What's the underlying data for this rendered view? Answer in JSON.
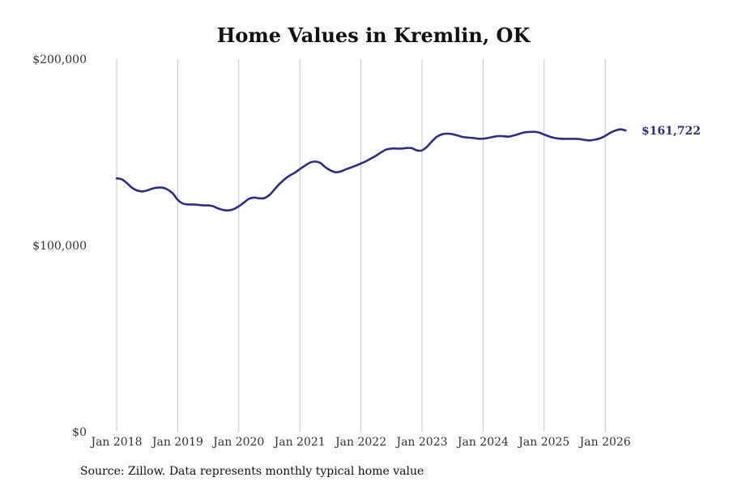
{
  "chart_data": {
    "type": "line",
    "title": "Home Values in Kremlin, OK",
    "source": "Source: Zillow. Data represents monthly typical home value",
    "ylim": [
      0,
      200000
    ],
    "y_ticks": [
      {
        "value": 0,
        "label": "$0"
      },
      {
        "value": 100000,
        "label": "$100,000"
      },
      {
        "value": 200000,
        "label": "$200,000"
      }
    ],
    "x_ticks": [
      {
        "value": "2018-01",
        "label": "Jan 2018"
      },
      {
        "value": "2019-01",
        "label": "Jan 2019"
      },
      {
        "value": "2020-01",
        "label": "Jan 2020"
      },
      {
        "value": "2021-01",
        "label": "Jan 2021"
      },
      {
        "value": "2022-01",
        "label": "Jan 2022"
      },
      {
        "value": "2023-01",
        "label": "Jan 2023"
      },
      {
        "value": "2024-01",
        "label": "Jan 2024"
      },
      {
        "value": "2025-01",
        "label": "Jan 2025"
      },
      {
        "value": "2026-01",
        "label": "Jan 2026"
      }
    ],
    "grid": "vertical",
    "line_color": "#2e2e82",
    "end_label": "$161,722",
    "series": [
      {
        "x": [
          "2018-01",
          "2018-02",
          "2018-03",
          "2018-04",
          "2018-05",
          "2018-06",
          "2018-07",
          "2018-08",
          "2018-09",
          "2018-10",
          "2018-11",
          "2018-12",
          "2019-01",
          "2019-02",
          "2019-03",
          "2019-04",
          "2019-05",
          "2019-06",
          "2019-07",
          "2019-08",
          "2019-09",
          "2019-10",
          "2019-11",
          "2019-12",
          "2020-01",
          "2020-02",
          "2020-03",
          "2020-04",
          "2020-05",
          "2020-06",
          "2020-07",
          "2020-08",
          "2020-09",
          "2020-10",
          "2020-11",
          "2020-12",
          "2021-01",
          "2021-02",
          "2021-03",
          "2021-04",
          "2021-05",
          "2021-06",
          "2021-07",
          "2021-08",
          "2021-09",
          "2021-10",
          "2021-11",
          "2021-12",
          "2022-01",
          "2022-02",
          "2022-03",
          "2022-04",
          "2022-05",
          "2022-06",
          "2022-07",
          "2022-08",
          "2022-09",
          "2022-10",
          "2022-11",
          "2022-12",
          "2023-01",
          "2023-02",
          "2023-03",
          "2023-04",
          "2023-05",
          "2023-06",
          "2023-07",
          "2023-08",
          "2023-09",
          "2023-10",
          "2023-11",
          "2023-12",
          "2024-01",
          "2024-02",
          "2024-03",
          "2024-04",
          "2024-05",
          "2024-06",
          "2024-07",
          "2024-08",
          "2024-09",
          "2024-10",
          "2024-11",
          "2024-12",
          "2025-01",
          "2025-02",
          "2025-03",
          "2025-04",
          "2025-05",
          "2025-06",
          "2025-07",
          "2025-08",
          "2025-09",
          "2025-10",
          "2025-11",
          "2025-12",
          "2026-01",
          "2026-02",
          "2026-03",
          "2026-04",
          "2026-05"
        ],
        "values": [
          136000,
          135500,
          133500,
          131000,
          129500,
          129000,
          129500,
          130500,
          131000,
          131000,
          130000,
          128000,
          124500,
          122500,
          122000,
          122000,
          121800,
          121500,
          121500,
          121000,
          119800,
          119000,
          118800,
          119500,
          121000,
          123000,
          125000,
          125700,
          125300,
          125400,
          127000,
          130000,
          133000,
          135500,
          137500,
          139000,
          141000,
          142800,
          144500,
          145000,
          144300,
          142000,
          140300,
          139300,
          139700,
          140800,
          141800,
          142800,
          144000,
          145200,
          146700,
          148200,
          150000,
          151500,
          152000,
          152000,
          152000,
          152300,
          152200,
          151000,
          151000,
          153000,
          156000,
          158500,
          159700,
          160000,
          159700,
          159000,
          158200,
          157900,
          157700,
          157300,
          157300,
          157700,
          158300,
          158700,
          158600,
          158400,
          159000,
          159800,
          160600,
          160900,
          161000,
          160600,
          159500,
          158500,
          157700,
          157300,
          157200,
          157200,
          157200,
          157100,
          156600,
          156400,
          156800,
          157500,
          158800,
          160500,
          161700,
          162300,
          161722
        ]
      }
    ]
  }
}
